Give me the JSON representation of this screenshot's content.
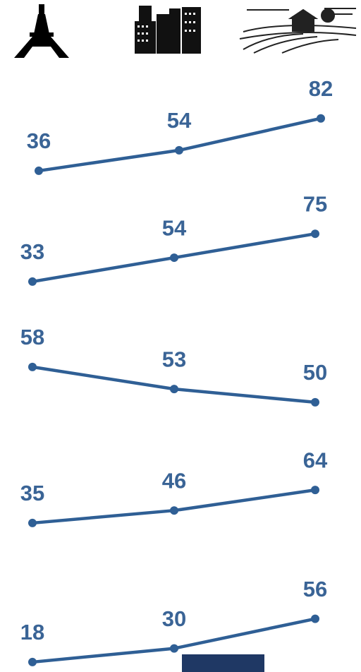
{
  "chart_data": [
    {
      "type": "line",
      "values": [
        36,
        54,
        82
      ],
      "color": "#2f5f95",
      "ylim": [
        31,
        93
      ]
    },
    {
      "type": "line",
      "values": [
        33,
        54,
        75
      ],
      "color": "#2f5f95",
      "ylim": [
        28,
        90
      ]
    },
    {
      "type": "line",
      "values": [
        58,
        53,
        50
      ],
      "color": "#2f5f95",
      "ylim": [
        48.7,
        64.7
      ]
    },
    {
      "type": "line",
      "values": [
        35,
        46,
        64
      ],
      "color": "#2f5f95",
      "ylim": [
        30,
        92
      ]
    },
    {
      "type": "line",
      "values": [
        18,
        30,
        56
      ],
      "color": "#2f5f95",
      "ylim": [
        13,
        75
      ]
    }
  ]
}
